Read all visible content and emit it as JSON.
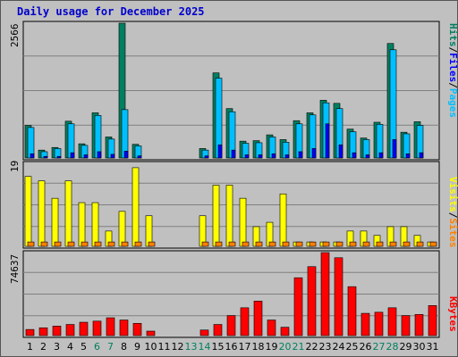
{
  "title": "Daily usage for December 2025",
  "legend": {
    "pages": "Pages",
    "files": "Files",
    "hits": "Hits",
    "sep": "/",
    "sites": "Sites",
    "visits": "Visits",
    "kbytes": "KBytes"
  },
  "chart_data": [
    {
      "type": "bar",
      "title": "Daily usage for December 2025",
      "categories": [
        "1",
        "2",
        "3",
        "4",
        "5",
        "6",
        "7",
        "8",
        "9",
        "10",
        "11",
        "12",
        "13",
        "14",
        "15",
        "16",
        "17",
        "18",
        "19",
        "20",
        "21",
        "22",
        "23",
        "24",
        "25",
        "26",
        "27",
        "28",
        "29",
        "30",
        "31"
      ],
      "weekend_days": [
        "6",
        "7",
        "13",
        "14",
        "20",
        "21",
        "27",
        "28"
      ],
      "ymax_label": "2566",
      "ylim": [
        0,
        2566
      ],
      "series": [
        {
          "name": "Hits",
          "values": [
            620,
            150,
            200,
            700,
            270,
            860,
            400,
            2566,
            260,
            0,
            0,
            0,
            0,
            180,
            1620,
            940,
            320,
            330,
            440,
            350,
            710,
            860,
            1100,
            1040,
            550,
            380,
            680,
            2180,
            490,
            690,
            0
          ]
        },
        {
          "name": "Files",
          "values": [
            580,
            120,
            180,
            650,
            240,
            810,
            360,
            920,
            230,
            0,
            0,
            0,
            0,
            150,
            1520,
            880,
            280,
            290,
            400,
            300,
            650,
            820,
            1050,
            940,
            500,
            350,
            640,
            2060,
            460,
            620,
            0
          ]
        },
        {
          "name": "Pages",
          "values": [
            80,
            30,
            30,
            100,
            60,
            120,
            70,
            130,
            40,
            0,
            0,
            0,
            0,
            40,
            250,
            150,
            60,
            60,
            80,
            60,
            120,
            180,
            650,
            250,
            100,
            60,
            100,
            350,
            80,
            100,
            0
          ]
        }
      ]
    },
    {
      "type": "bar",
      "categories": [
        "1",
        "2",
        "3",
        "4",
        "5",
        "6",
        "7",
        "8",
        "9",
        "10",
        "11",
        "12",
        "13",
        "14",
        "15",
        "16",
        "17",
        "18",
        "19",
        "20",
        "21",
        "22",
        "23",
        "24",
        "25",
        "26",
        "27",
        "28",
        "29",
        "30",
        "31"
      ],
      "ymax_label": "19",
      "ylim": [
        0,
        19
      ],
      "series": [
        {
          "name": "Visits",
          "values": [
            16,
            15,
            11,
            15,
            10,
            10,
            3.5,
            8,
            18,
            7,
            0,
            0,
            0,
            7,
            14,
            14,
            11,
            4.5,
            5.5,
            12,
            1,
            1,
            1,
            1,
            3.5,
            3.5,
            2.5,
            4.5,
            4.5,
            2.5,
            1
          ]
        },
        {
          "name": "Sites",
          "values": [
            1,
            1,
            1,
            1,
            1,
            1,
            1,
            1,
            1,
            1,
            0,
            0,
            0,
            1,
            1,
            1,
            1,
            1,
            1,
            1,
            1,
            1,
            1,
            1,
            1,
            1,
            1,
            1,
            1,
            1,
            1
          ]
        }
      ]
    },
    {
      "type": "bar",
      "categories": [
        "1",
        "2",
        "3",
        "4",
        "5",
        "6",
        "7",
        "8",
        "9",
        "10",
        "11",
        "12",
        "13",
        "14",
        "15",
        "16",
        "17",
        "18",
        "19",
        "20",
        "21",
        "22",
        "23",
        "24",
        "25",
        "26",
        "27",
        "28",
        "29",
        "30",
        "31"
      ],
      "ymax_label": "74637",
      "ylim": [
        0,
        74637
      ],
      "series": [
        {
          "name": "KBytes",
          "values": [
            5500,
            7000,
            8500,
            10000,
            12000,
            13000,
            16000,
            14000,
            11000,
            4000,
            0,
            0,
            0,
            5000,
            10000,
            18000,
            25000,
            31000,
            14000,
            7500,
            52000,
            62000,
            74637,
            70000,
            44000,
            20000,
            21000,
            25000,
            18000,
            19000,
            27000
          ]
        }
      ]
    }
  ],
  "colors": {
    "background": "#c0c0c0",
    "title": "#0000cc",
    "pages": "#00bfff",
    "files": "#0000ff",
    "hits": "#008060",
    "sites": "#ff8000",
    "visits": "#ffff00",
    "kbytes": "#ff0000",
    "weekend_label": "#008060",
    "weekday_label": "#000000"
  }
}
